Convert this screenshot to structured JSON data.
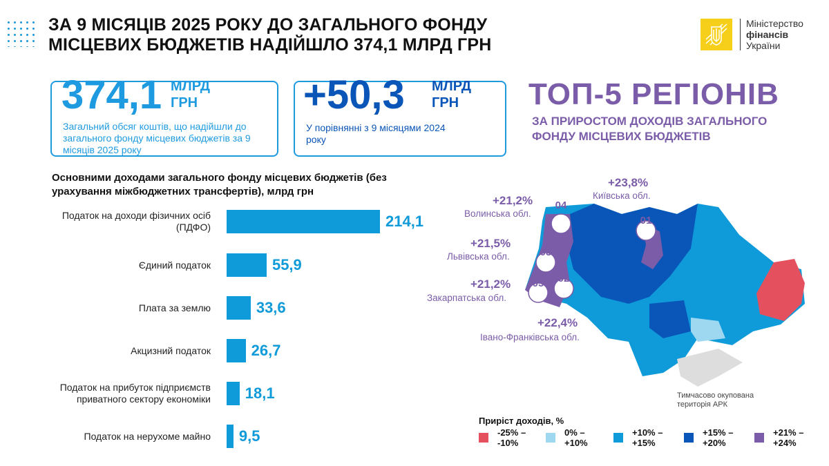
{
  "header": {
    "title_line1": "ЗА 9 МІСЯЦІВ 2025 РОКУ ДО ЗАГАЛЬНОГО ФОНДУ",
    "title_line2": "МІСЦЕВИХ БЮДЖЕТІВ НАДІЙШЛО 374,1 МЛРД ГРН"
  },
  "logo": {
    "line1": "Міністерство",
    "line2": "фінансів",
    "line3": "України"
  },
  "card1": {
    "value": "374,1",
    "unit1": "МЛРД",
    "unit2": "ГРН",
    "desc": "Загальний обсяг коштів, що надійшли до загального фонду місцевих бюджетів за 9 місяців 2025 року"
  },
  "card2": {
    "value": "+50,3",
    "unit1": "МЛРД",
    "unit2": "ГРН",
    "desc": "У порівнянні з 9 місяцями 2024 року"
  },
  "top5": {
    "title": "ТОП-5 РЕГІОНІВ",
    "subtitle_line1": "ЗА ПРИРОСТОМ ДОХОДІВ ЗАГАЛЬНОГО",
    "subtitle_line2": "ФОНДУ МІСЦЕВИХ БЮДЖЕТІВ"
  },
  "chart_data": {
    "type": "bar",
    "orientation": "horizontal",
    "title": "Основними доходами загального фонду місцевих бюджетів (без урахування міжбюджетних трансфертів), млрд грн",
    "categories": [
      "Податок на доходи фізичних осіб (ПДФО)",
      "Єдиний податок",
      "Плата за землю",
      "Акцизний податок",
      "Податок на прибуток підприємств приватного сектору економіки",
      "Податок на нерухоме майно"
    ],
    "values": [
      214.1,
      55.9,
      33.6,
      26.7,
      18.1,
      9.5
    ],
    "labels": [
      "214,1",
      "55,9",
      "33,6",
      "26,7",
      "18,1",
      "9,5"
    ],
    "color": "#0f9ad9"
  },
  "map": {
    "regions": [
      {
        "rank": "01",
        "pct": "+23,8%",
        "name": "Київська обл."
      },
      {
        "rank": "02",
        "pct": "+22,4%",
        "name": "Івано-Франківська обл."
      },
      {
        "rank": "03",
        "pct": "+21,5%",
        "name": "Львівська обл."
      },
      {
        "rank": "04",
        "pct": "+21,2%",
        "name": "Волинська обл."
      },
      {
        "rank": "05",
        "pct": "+21,2%",
        "name": "Закарпатська обл."
      }
    ],
    "ark_note": "Тимчасово окупована територія АРК",
    "legend_title": "Приріст доходів, %",
    "legend": [
      {
        "top": "-25% –",
        "bottom": "-10%",
        "color": "#e5505e"
      },
      {
        "top": "0% –",
        "bottom": "+10%",
        "color": "#9dd8f0"
      },
      {
        "top": "+10% –",
        "bottom": "+15%",
        "color": "#0f9ad9"
      },
      {
        "top": "+15% –",
        "bottom": "+20%",
        "color": "#0a55b8"
      },
      {
        "top": "+21% –",
        "bottom": "+24%",
        "color": "#7a5ca8"
      }
    ]
  }
}
